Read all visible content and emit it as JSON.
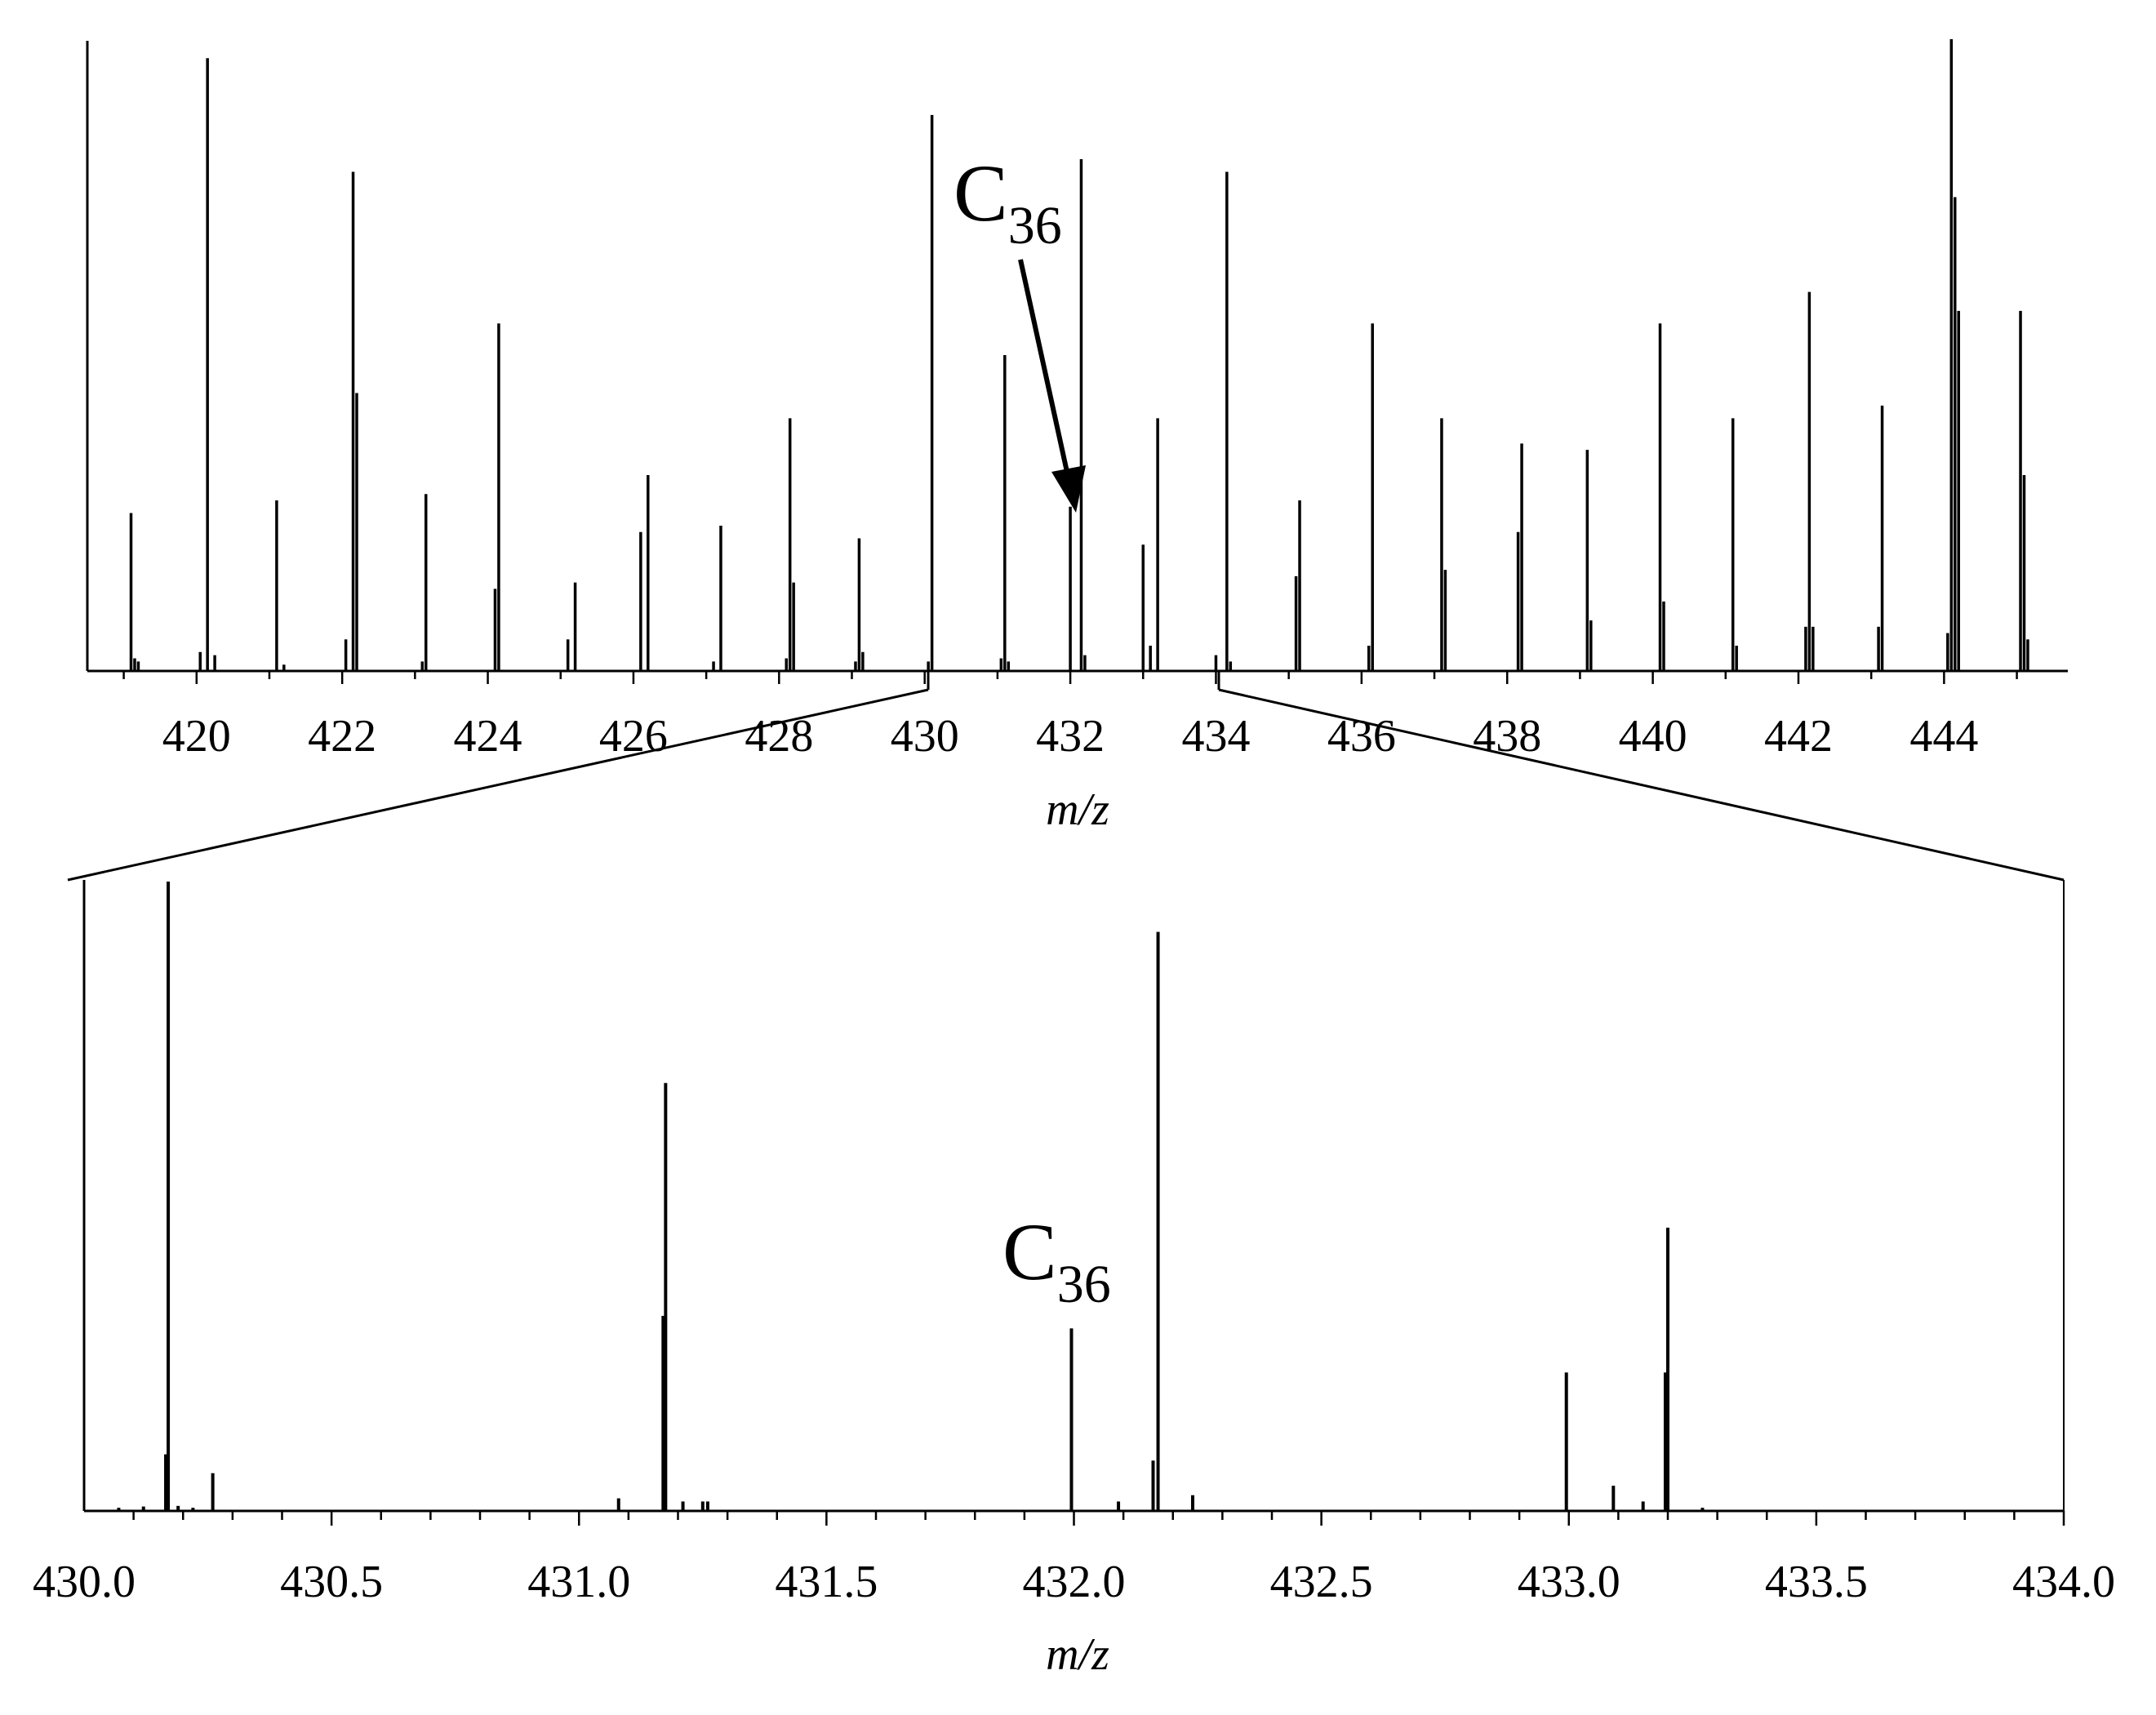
{
  "chart_data": [
    {
      "id": "overview",
      "type": "bar",
      "subtype": "mass-spectrum stick plot",
      "xlabel": "m/z",
      "ylabel": "",
      "xlim": [
        418.5,
        445.7
      ],
      "ylim": [
        0,
        100
      ],
      "x_ticks": [
        "420",
        "422",
        "424",
        "426",
        "428",
        "430",
        "432",
        "434",
        "436",
        "438",
        "440",
        "442",
        "444"
      ],
      "grid": false,
      "legend": "none",
      "annotation": {
        "text": "C",
        "subscript": "36",
        "points_to_mz": 432.0,
        "arrow": true
      },
      "peaks": {
        "mz": [
          419.1,
          419.15,
          419.2,
          420.05,
          420.15,
          420.25,
          421.1,
          421.2,
          422.05,
          422.15,
          422.2,
          423.1,
          423.15,
          424.1,
          424.15,
          425.1,
          425.2,
          426.1,
          426.2,
          427.1,
          427.2,
          428.1,
          428.15,
          428.2,
          429.05,
          429.1,
          429.15,
          430.05,
          430.1,
          431.05,
          431.1,
          431.15,
          432.0,
          432.15,
          432.2,
          433.0,
          433.1,
          433.2,
          434.0,
          434.15,
          434.2,
          435.1,
          435.15,
          436.1,
          436.15,
          437.1,
          437.15,
          438.15,
          438.2,
          439.1,
          439.15,
          440.1,
          440.15,
          441.1,
          441.15,
          442.1,
          442.15,
          442.2,
          443.1,
          443.15,
          444.05,
          444.1,
          444.15,
          444.2,
          445.05,
          445.1,
          445.15
        ],
        "intensity": [
          25,
          2,
          1.5,
          3,
          97,
          2.5,
          27,
          1,
          5,
          79,
          44,
          1.5,
          28,
          13,
          55,
          5,
          14,
          22,
          31,
          1.5,
          23,
          2,
          40,
          14,
          1.5,
          21,
          3,
          1.5,
          88,
          2,
          50,
          1.5,
          26,
          81,
          2.5,
          20,
          4,
          40,
          2.5,
          79,
          1.5,
          15,
          27,
          4,
          55,
          40,
          16,
          22,
          36,
          35,
          8,
          55,
          11,
          40,
          4,
          7,
          60,
          7,
          7,
          42,
          6,
          100,
          75,
          57,
          57,
          31,
          5
        ]
      }
    },
    {
      "id": "zoom",
      "type": "bar",
      "subtype": "mass-spectrum stick plot",
      "xlabel": "m/z",
      "ylabel": "",
      "xlim": [
        430.0,
        434.0
      ],
      "ylim": [
        0,
        100
      ],
      "x_ticks": [
        "430.0",
        "430.5",
        "431.0",
        "431.5",
        "432.0",
        "432.5",
        "433.0",
        "433.5",
        "434.0"
      ],
      "grid": false,
      "legend": "none",
      "zoom_of": [
        430.0,
        434.0
      ],
      "annotation": {
        "text": "C",
        "subscript": "36",
        "points_to_mz": 432.0,
        "arrow": false
      },
      "peaks": {
        "mz": [
          430.07,
          430.12,
          430.165,
          430.17,
          430.19,
          430.22,
          430.26,
          431.08,
          431.17,
          431.175,
          431.21,
          431.25,
          431.26,
          431.995,
          432.09,
          432.16,
          432.17,
          432.24,
          432.995,
          433.09,
          433.15,
          433.195,
          433.2,
          433.27
        ],
        "intensity": [
          0.5,
          0.7,
          9,
          100,
          0.8,
          0.5,
          6,
          2,
          31,
          68,
          1.5,
          1.5,
          1.5,
          29,
          1.5,
          8,
          92,
          2.5,
          22,
          4,
          1.5,
          22,
          45,
          0.5
        ]
      }
    }
  ]
}
